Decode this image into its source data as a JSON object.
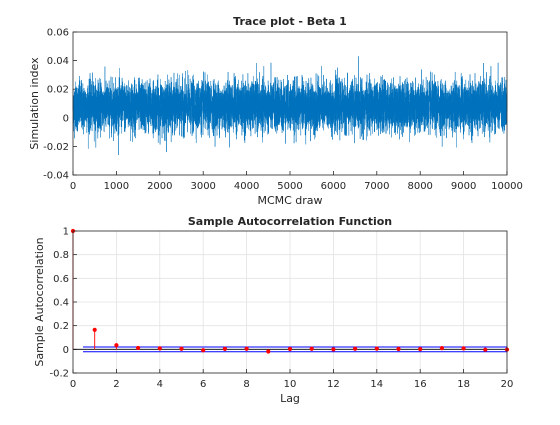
{
  "chart_data": [
    {
      "type": "line",
      "title": "Trace plot - Beta 1",
      "xlabel": "MCMC draw",
      "ylabel": "Simulation index",
      "xlim": [
        0,
        10000
      ],
      "ylim": [
        -0.04,
        0.06
      ],
      "xticks": [
        0,
        1000,
        2000,
        3000,
        4000,
        5000,
        6000,
        7000,
        8000,
        9000,
        10000
      ],
      "xtick_labels": [
        "0",
        "1000",
        "2000",
        "3000",
        "4000",
        "5000",
        "6000",
        "7000",
        "8000",
        "9000",
        "10000"
      ],
      "yticks": [
        -0.04,
        -0.02,
        0,
        0.02,
        0.04,
        0.06
      ],
      "ytick_labels": [
        "-0.04",
        "-0.02",
        "0",
        "0.02",
        "0.04",
        "0.06"
      ],
      "series_summary": {
        "n_draws": 10000,
        "mean": 0.008,
        "std": 0.0085,
        "min": -0.026,
        "max": 0.043
      },
      "grid": false,
      "color": "#0072BD"
    },
    {
      "type": "stem",
      "title": "Sample Autocorrelation Function",
      "xlabel": "Lag",
      "ylabel": "Sample Autocorrelation",
      "xlim": [
        0,
        20
      ],
      "ylim": [
        -0.2,
        1
      ],
      "xticks": [
        0,
        2,
        4,
        6,
        8,
        10,
        12,
        14,
        16,
        18,
        20
      ],
      "xtick_labels": [
        "0",
        "2",
        "4",
        "6",
        "8",
        "10",
        "12",
        "14",
        "16",
        "18",
        "20"
      ],
      "yticks": [
        -0.2,
        0,
        0.2,
        0.4,
        0.6,
        0.8,
        1
      ],
      "ytick_labels": [
        "-0.2",
        "0",
        "0.2",
        "0.4",
        "0.6",
        "0.8",
        "1"
      ],
      "lags": [
        0,
        1,
        2,
        3,
        4,
        5,
        6,
        7,
        8,
        9,
        10,
        11,
        12,
        13,
        14,
        15,
        16,
        17,
        18,
        19,
        20
      ],
      "values": [
        1.0,
        0.165,
        0.035,
        0.012,
        0.008,
        0.005,
        -0.008,
        0.004,
        0.005,
        -0.018,
        0.003,
        0.005,
        0.0,
        0.005,
        0.006,
        0.003,
        0.002,
        0.01,
        0.008,
        -0.003,
        -0.002
      ],
      "confidence_bounds": [
        -0.02,
        0.02
      ],
      "zero_line": 0,
      "grid": true,
      "stem_color": "#ff0000",
      "marker_color": "#ff0000",
      "bound_color": "#0000ff"
    }
  ]
}
